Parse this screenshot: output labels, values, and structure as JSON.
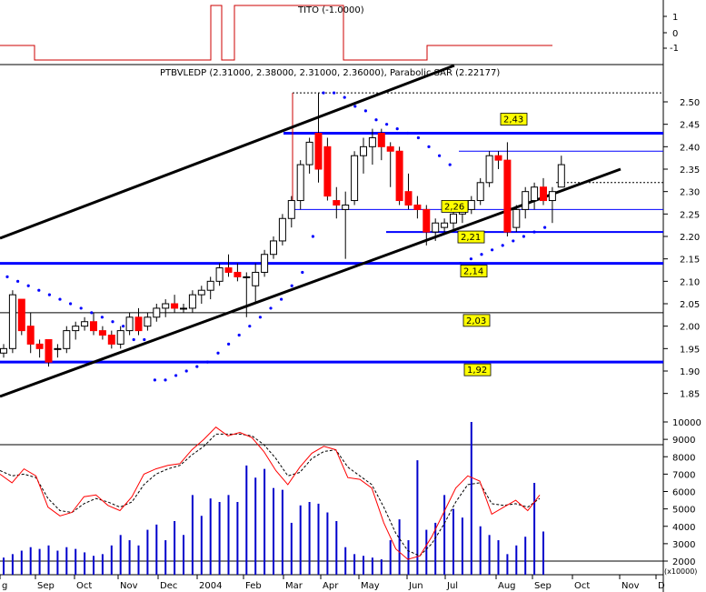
{
  "indicator_panel": {
    "title": "TITO (-1.0000)",
    "ticks": [
      "1",
      "0",
      "-1"
    ],
    "values": [
      0,
      -1,
      -1,
      -1,
      -1,
      -1,
      1,
      1,
      -1,
      1,
      1,
      1,
      1,
      1,
      1,
      1,
      1,
      1,
      1,
      -1,
      -1,
      -1,
      -1,
      -1,
      -1,
      0,
      0,
      0,
      0,
      0
    ]
  },
  "price_panel": {
    "title": "PTBVLEDP (2.31000, 2.38000, 2.31000, 2.36000), Parabolic SAR (2.22177)",
    "y_ticks": [
      "2.50",
      "2.45",
      "2.40",
      "2.35",
      "2.30",
      "2.25",
      "2.20",
      "2.15",
      "2.10",
      "2.05",
      "2.00",
      "1.95",
      "1.90",
      "1.85"
    ],
    "level_labels": [
      "2,43",
      "2,26",
      "2,21",
      "2,14",
      "2,03",
      "1,92"
    ]
  },
  "volume_panel": {
    "y_ticks": [
      "10000",
      "9000",
      "8000",
      "7000",
      "6000",
      "5000",
      "4000",
      "3000",
      "2000"
    ],
    "unit_label": "(x10000)"
  },
  "x_axis": {
    "labels": [
      "g",
      "Sep",
      "Oct",
      "Nov",
      "Dec",
      "2004",
      "Feb",
      "Mar",
      "Apr",
      "May",
      "Jun",
      "Jul",
      "Aug",
      "Sep",
      "Oct",
      "Nov",
      "D"
    ]
  },
  "colors": {
    "up_candle": "#ffffff",
    "down_candle": "#ff0000",
    "support_line": "#0000ff",
    "sar": "#0000ff",
    "trend_channel": "#000000",
    "level_label_bg": "#ffff00",
    "indicator": "#cc0000",
    "volume": "#0000cc"
  },
  "chart_data": [
    {
      "type": "line",
      "title": "TITO (-1.0000)",
      "x": [
        1,
        2,
        3,
        4,
        5,
        6,
        7,
        8,
        9,
        10,
        11,
        12,
        13,
        14,
        15,
        16,
        17,
        18,
        19,
        20,
        21,
        22,
        23,
        24,
        25,
        26,
        27,
        28,
        29,
        30
      ],
      "series": [
        {
          "name": "TITO",
          "values": [
            0,
            -1,
            -1,
            -1,
            -1,
            -1,
            1,
            1,
            -1,
            1,
            1,
            1,
            1,
            1,
            1,
            1,
            1,
            1,
            1,
            -1,
            -1,
            -1,
            -1,
            -1,
            -1,
            0,
            0,
            0,
            0,
            0
          ]
        }
      ],
      "ylim": [
        -1.5,
        1.8
      ]
    },
    {
      "type": "candlestick",
      "title": "PTBVLEDP (2.31000, 2.38000, 2.31000, 2.36000), Parabolic SAR (2.22177)",
      "ylim": [
        1.82,
        2.53
      ],
      "ohlc": [
        [
          1.94,
          1.96,
          1.93,
          1.95
        ],
        [
          1.95,
          2.08,
          1.94,
          2.07
        ],
        [
          2.06,
          2.06,
          1.98,
          1.99
        ],
        [
          2.0,
          2.03,
          1.94,
          1.96
        ],
        [
          1.96,
          1.97,
          1.93,
          1.95
        ],
        [
          1.97,
          1.97,
          1.91,
          1.92
        ],
        [
          1.95,
          1.96,
          1.93,
          1.95
        ],
        [
          1.95,
          2.0,
          1.94,
          1.99
        ],
        [
          1.99,
          2.01,
          1.97,
          2.0
        ],
        [
          2.0,
          2.02,
          1.99,
          2.01
        ],
        [
          2.01,
          2.03,
          1.98,
          1.99
        ],
        [
          1.99,
          2.0,
          1.97,
          1.98
        ],
        [
          1.98,
          1.99,
          1.95,
          1.96
        ],
        [
          1.96,
          2.0,
          1.95,
          1.99
        ],
        [
          1.99,
          2.03,
          1.98,
          2.02
        ],
        [
          2.02,
          2.04,
          1.98,
          1.99
        ],
        [
          2.0,
          2.03,
          1.99,
          2.02
        ],
        [
          2.02,
          2.05,
          2.01,
          2.04
        ],
        [
          2.04,
          2.06,
          2.02,
          2.05
        ],
        [
          2.05,
          2.07,
          2.03,
          2.04
        ],
        [
          2.04,
          2.05,
          2.03,
          2.04
        ],
        [
          2.04,
          2.08,
          2.03,
          2.07
        ],
        [
          2.07,
          2.09,
          2.05,
          2.08
        ],
        [
          2.08,
          2.11,
          2.06,
          2.1
        ],
        [
          2.1,
          2.14,
          2.09,
          2.13
        ],
        [
          2.13,
          2.16,
          2.11,
          2.12
        ],
        [
          2.12,
          2.14,
          2.1,
          2.11
        ],
        [
          2.11,
          2.12,
          2.02,
          2.11
        ],
        [
          2.09,
          2.14,
          2.05,
          2.12
        ],
        [
          2.12,
          2.17,
          2.11,
          2.16
        ],
        [
          2.16,
          2.2,
          2.15,
          2.19
        ],
        [
          2.19,
          2.25,
          2.18,
          2.24
        ],
        [
          2.24,
          2.29,
          2.22,
          2.28
        ],
        [
          2.28,
          2.37,
          2.26,
          2.36
        ],
        [
          2.36,
          2.42,
          2.34,
          2.41
        ],
        [
          2.43,
          2.52,
          2.32,
          2.35
        ],
        [
          2.4,
          2.42,
          2.28,
          2.29
        ],
        [
          2.28,
          2.31,
          2.24,
          2.27
        ],
        [
          2.26,
          2.3,
          2.15,
          2.27
        ],
        [
          2.28,
          2.39,
          2.27,
          2.38
        ],
        [
          2.38,
          2.42,
          2.34,
          2.4
        ],
        [
          2.4,
          2.44,
          2.36,
          2.42
        ],
        [
          2.43,
          2.44,
          2.37,
          2.4
        ],
        [
          2.4,
          2.41,
          2.31,
          2.39
        ],
        [
          2.39,
          2.4,
          2.27,
          2.28
        ],
        [
          2.3,
          2.34,
          2.26,
          2.27
        ],
        [
          2.27,
          2.29,
          2.24,
          2.26
        ],
        [
          2.26,
          2.27,
          2.18,
          2.21
        ],
        [
          2.21,
          2.24,
          2.19,
          2.23
        ],
        [
          2.22,
          2.24,
          2.21,
          2.23
        ],
        [
          2.23,
          2.26,
          2.21,
          2.25
        ],
        [
          2.25,
          2.27,
          2.23,
          2.26
        ],
        [
          2.26,
          2.29,
          2.25,
          2.28
        ],
        [
          2.28,
          2.33,
          2.27,
          2.32
        ],
        [
          2.32,
          2.39,
          2.31,
          2.38
        ],
        [
          2.38,
          2.39,
          2.35,
          2.37
        ],
        [
          2.37,
          2.41,
          2.2,
          2.21
        ],
        [
          2.22,
          2.27,
          2.21,
          2.26
        ],
        [
          2.26,
          2.31,
          2.24,
          2.3
        ],
        [
          2.28,
          2.32,
          2.26,
          2.31
        ],
        [
          2.31,
          2.33,
          2.27,
          2.28
        ],
        [
          2.28,
          2.31,
          2.23,
          2.3
        ],
        [
          2.31,
          2.38,
          2.31,
          2.36
        ]
      ],
      "sar": [
        2.11,
        2.1,
        2.09,
        2.08,
        2.07,
        2.06,
        2.05,
        2.04,
        2.03,
        2.02,
        2.01,
        2.0,
        1.97,
        1.97,
        1.88,
        1.88,
        1.89,
        1.9,
        1.91,
        1.92,
        1.94,
        1.96,
        1.98,
        2.0,
        2.02,
        2.04,
        2.06,
        2.09,
        2.12,
        2.2,
        2.52,
        2.52,
        2.51,
        2.49,
        2.48,
        2.46,
        2.45,
        2.44,
        2.43,
        2.42,
        2.4,
        2.38,
        2.36,
        2.14,
        2.15,
        2.16,
        2.17,
        2.18,
        2.19,
        2.2,
        2.21,
        2.22
      ],
      "levels": [
        2.43,
        2.26,
        2.21,
        2.14,
        2.03,
        1.92
      ]
    },
    {
      "type": "bar+line",
      "ylim": [
        1500,
        10200
      ],
      "volume": [
        2200,
        2400,
        2600,
        2800,
        2700,
        2900,
        2600,
        2800,
        2700,
        2500,
        2300,
        2400,
        2900,
        3500,
        3200,
        2900,
        3800,
        4100,
        3200,
        4300,
        3500,
        5800,
        4600,
        5600,
        5400,
        5800,
        5400,
        7500,
        6800,
        7300,
        6200,
        6100,
        4200,
        5200,
        5400,
        5300,
        4800,
        4300,
        2800,
        2400,
        2300,
        2200,
        2100,
        3200,
        4400,
        3200,
        7800,
        3800,
        4200,
        5800,
        5000,
        4500,
        10000,
        4000,
        3500,
        3200,
        2400,
        2900,
        3400,
        6500,
        3700
      ],
      "stoch_k": [
        7000,
        6500,
        7300,
        6900,
        5100,
        4600,
        4800,
        5700,
        5800,
        5200,
        4900,
        5700,
        7000,
        7300,
        7500,
        7600,
        8400,
        9000,
        9700,
        9200,
        9400,
        9100,
        8300,
        7200,
        6400,
        7400,
        8200,
        8600,
        8400,
        6800,
        6700,
        6200,
        4200,
        2700,
        2100,
        2300,
        3400,
        4800,
        6200,
        6900,
        6600,
        4700,
        5100,
        5500,
        4900,
        5800
      ],
      "stoch_d": [
        7200,
        6900,
        7000,
        6800,
        5600,
        4900,
        4800,
        5300,
        5600,
        5400,
        5100,
        5400,
        6400,
        7000,
        7300,
        7500,
        8100,
        8600,
        9300,
        9300,
        9300,
        9200,
        8700,
        7900,
        6900,
        7100,
        7900,
        8300,
        8400,
        7400,
        6900,
        6400,
        5100,
        3600,
        2600,
        2300,
        3000,
        4100,
        5400,
        6400,
        6500,
        5300,
        5200,
        5300,
        5100,
        5600
      ]
    }
  ]
}
